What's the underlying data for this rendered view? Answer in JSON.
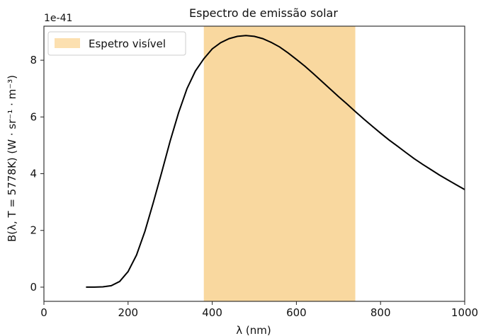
{
  "chart_data": {
    "type": "line",
    "title": "Espectro de emissão solar",
    "xlabel": "λ (nm)",
    "ylabel": "B(λ, T = 5778K)   (W · sr⁻¹ · m⁻³)",
    "y_offset_text": "1e-41",
    "xlim": [
      0,
      1000
    ],
    "ylim": [
      -0.5,
      9.2
    ],
    "x_ticks": [
      0,
      200,
      400,
      600,
      800,
      1000
    ],
    "y_ticks": [
      0,
      2,
      4,
      6,
      8
    ],
    "grid": false,
    "legend_position": "top-left",
    "legend": [
      {
        "label": "Espetro visível",
        "color": "#fce0b0"
      }
    ],
    "shaded_region": {
      "label": "Espetro visível",
      "x_start": 380,
      "x_end": 740,
      "color": "#f9d89f"
    },
    "series": [
      {
        "color": "#000000",
        "x": [
          100,
          120,
          140,
          160,
          180,
          200,
          220,
          240,
          260,
          280,
          300,
          320,
          340,
          360,
          380,
          400,
          420,
          440,
          460,
          480,
          500,
          520,
          540,
          560,
          580,
          600,
          620,
          640,
          660,
          680,
          700,
          720,
          740,
          760,
          780,
          800,
          820,
          840,
          860,
          880,
          900,
          920,
          940,
          960,
          980,
          1000
        ],
        "y": [
          0.0,
          0.0,
          0.01,
          0.05,
          0.2,
          0.55,
          1.13,
          1.97,
          2.98,
          4.05,
          5.15,
          6.15,
          7.0,
          7.62,
          8.05,
          8.4,
          8.62,
          8.76,
          8.84,
          8.87,
          8.84,
          8.76,
          8.63,
          8.47,
          8.26,
          8.03,
          7.79,
          7.53,
          7.26,
          6.99,
          6.72,
          6.46,
          6.19,
          5.93,
          5.68,
          5.43,
          5.19,
          4.97,
          4.75,
          4.53,
          4.33,
          4.14,
          3.95,
          3.78,
          3.61,
          3.44
        ]
      }
    ]
  }
}
